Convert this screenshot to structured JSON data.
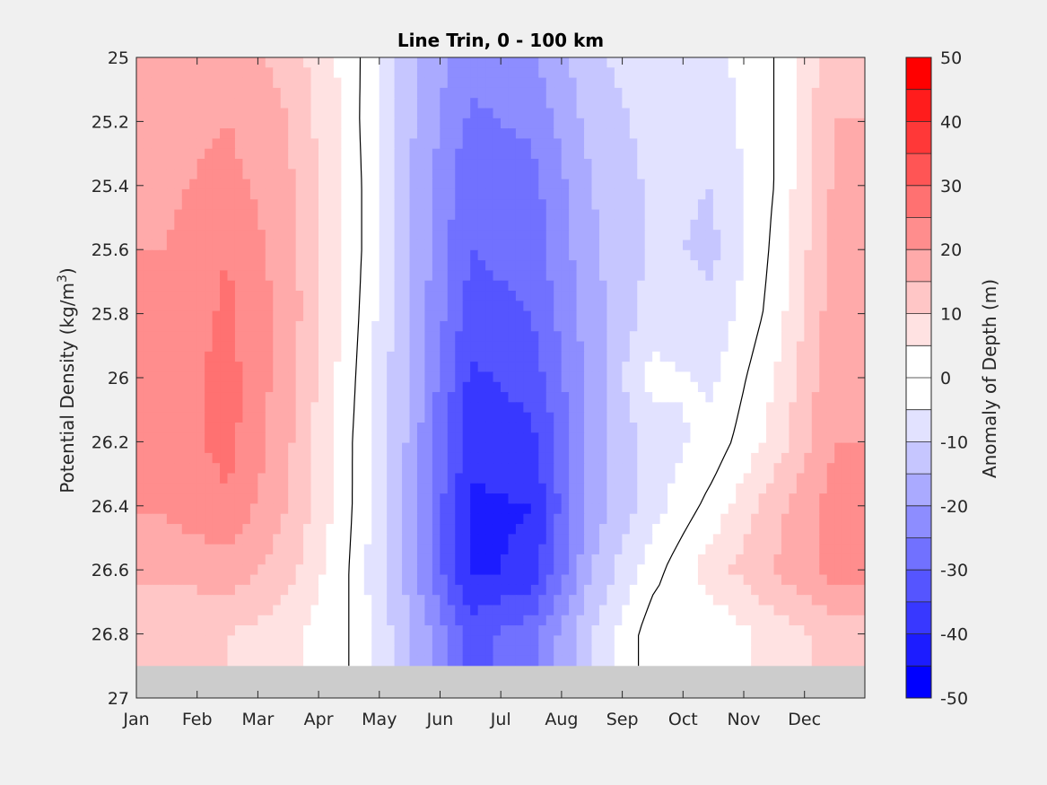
{
  "chart_data": {
    "type": "heatmap",
    "title": "Line Trin, 0 - 100 km",
    "ylabel": "Potential Density (kg/m",
    "ylabel_sup": "3",
    "ylabel_close": ")",
    "xlabel": "",
    "x_ticks": [
      "Jan",
      "Feb",
      "Mar",
      "Apr",
      "May",
      "Jun",
      "Jul",
      "Aug",
      "Sep",
      "Oct",
      "Nov",
      "Dec"
    ],
    "y_ticks": [
      "25",
      "25.2",
      "25.4",
      "25.6",
      "25.8",
      "26",
      "26.2",
      "26.4",
      "26.6",
      "26.8",
      "27"
    ],
    "ylim": [
      25,
      27
    ],
    "y_reversed": true,
    "no_data_below": 26.9,
    "colorbar": {
      "label": "Anomaly of Depth (m)",
      "range": [
        -50,
        50
      ],
      "step": 5,
      "ticks": [
        "50",
        "40",
        "30",
        "20",
        "10",
        "0",
        "-10",
        "-20",
        "-30",
        "-40",
        "-50"
      ],
      "colors": [
        "#ff0000",
        "#ff1c1c",
        "#ff3838",
        "#ff5555",
        "#ff7171",
        "#ff8d8d",
        "#ffaaaa",
        "#ffc6c6",
        "#ffe2e2",
        "#ffffff",
        "#ffffff",
        "#e2e2ff",
        "#c6c6ff",
        "#aaaaff",
        "#8d8dff",
        "#7171ff",
        "#5555ff",
        "#3838ff",
        "#1c1cff",
        "#0000ff"
      ]
    },
    "months": [
      "Jan",
      "Feb",
      "Mar",
      "Apr",
      "May",
      "Jun",
      "Jul",
      "Aug",
      "Sep",
      "Oct",
      "Nov",
      "Dec"
    ],
    "density_levels": [
      25,
      25.2,
      25.4,
      25.6,
      25.8,
      26,
      26.2,
      26.4,
      26.6,
      26.8
    ],
    "values": [
      [
        15,
        18,
        13,
        3,
        -13,
        -24,
        -21,
        -11,
        -7,
        -7,
        0,
        14
      ],
      [
        17,
        20,
        15,
        3,
        -14,
        -26,
        -24,
        -13,
        -8,
        -8,
        0,
        15
      ],
      [
        19,
        22,
        16,
        4,
        -15,
        -29,
        -27,
        -15,
        -9,
        -10,
        0,
        16
      ],
      [
        20,
        25,
        17,
        4,
        -15,
        -30,
        -28,
        -16,
        -9,
        -11,
        1,
        17
      ],
      [
        21,
        26,
        18,
        3,
        -15,
        -32,
        -30,
        -17,
        -8,
        -9,
        2,
        18
      ],
      [
        22,
        27,
        17,
        2,
        -16,
        -36,
        -33,
        -18,
        -3,
        -6,
        5,
        19
      ],
      [
        22,
        27,
        16,
        1,
        -16,
        -38,
        -37,
        -18,
        -8,
        -3,
        7,
        20
      ],
      [
        21,
        24,
        15,
        1,
        -17,
        -41,
        -40,
        -18,
        -7,
        2,
        13,
        22
      ],
      [
        16,
        18,
        12,
        0,
        -17,
        -41,
        -39,
        -15,
        -2,
        8,
        15,
        22
      ],
      [
        11,
        10,
        7,
        0,
        -14,
        -32,
        -27,
        -10,
        3,
        1,
        7,
        12
      ]
    ],
    "zero_contours": 3
  }
}
